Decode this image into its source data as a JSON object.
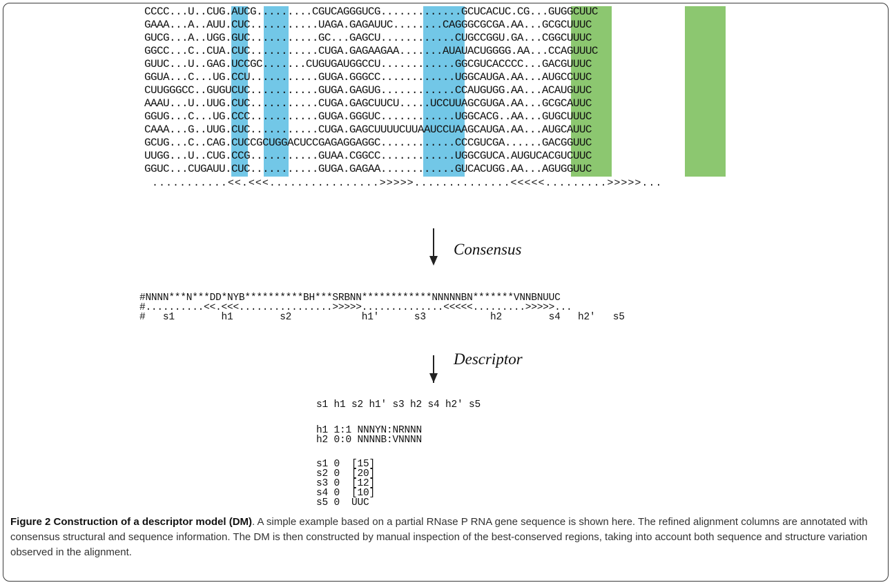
{
  "figure": {
    "alignment": {
      "rows": [
        "CCCC...U..CUG.AUCG.........CGUCAGGGUCG.............GCUCACUC.CG...GUGGCUUC",
        "GAAA...A..AUU.CUC...........UAGA.GAGAUUC........CAGGGCGCGA.AA...GCGCUUUC",
        "GUCG...A..UGG.GUC...........GC...GAGCU............CUGCCGGU.GA...CGGCUUUC",
        "GGCC...C..CUA.CUC...........CUGA.GAGAAGAA.......AUAUACUGGGG.AA...CCAGUUUC",
        "GUUC...U..GAG.UCCGC.......CUGUGAUGGCCU............GGCGUCACCCC...GACGUUUC",
        "GGUA...C...UG.CCU...........GUGA.GGGCC............UGGCAUGA.AA...AUGCCUUC",
        "CUUGGGCC..GUGUCUC...........GUGA.GAGUG............CCAUGUGG.AA...ACAUGUUC",
        "AAAU...U..UUG.CUC...........CUGA.GAGCUUCU.....UCCUUAGCGUGA.AA...GCGCAUUC",
        "GGUG...C...UG.CCC...........GUGA.GGGUC............UGGCACG..AA...GUGCUUUC",
        "CAAA...G..UUG.CUC...........CUGA.GAGCUUUUCUUAAUCCUAAGCAUGA.AA...AUGCAUUC",
        "GCUG...C..CAG.CUCCGCUGGACUCCGAGAGGAGGC............CCCGUCGA......GACGGUUC",
        "UUGG...U..CUG.CCG...........GUAA.CGGCC............UGGCGUCA.AUGUCACGUCUUC",
        "GGUC...CUGAUU.CUC...........GUGA.GAGAA............GUCACUGG.AA...AGUGGUUC"
      ],
      "structure": "...........<<.<<<................>>>>>..............<<<<<.........>>>>>...",
      "colors": {
        "helix1": "#72c7e7",
        "helix2": "#8cc770"
      }
    },
    "arrow1_label": "Consensus",
    "consensus": {
      "sequence": "#NNNN***N***DD*NYB**********BH***SRBNN************NNNNNBN*******VNNBNUUC",
      "structure": "#..........<<.<<<................>>>>>..............<<<<<.........>>>>>...",
      "segments": "#   s1        h1        s2            h1′      s3           h2        s4   h2′   s5"
    },
    "arrow2_label": "Descriptor",
    "descriptor": {
      "topology": "s1 h1 s2 h1′ s3 h2 s4 h2′ s5",
      "helices": [
        "h1 1:1 NNNYN:NRNNN",
        "h2 0:0 NNNNB:VNNNN"
      ],
      "segments": [
        "s1 0  [15]",
        "s2 0  [20]",
        "s3 0  [12]",
        "s4 0  [10]",
        "s5 0  UUC"
      ]
    },
    "caption": {
      "title": "Figure 2 Construction of a descriptor model (DM)",
      "body": ". A simple example based on a partial RNase P RNA gene sequence is shown here. The refined alignment columns are annotated with consensus structural and sequence information. The DM is then constructed by manual inspection of the best-conserved regions, taking into account both sequence and structure variation observed in the alignment."
    }
  }
}
